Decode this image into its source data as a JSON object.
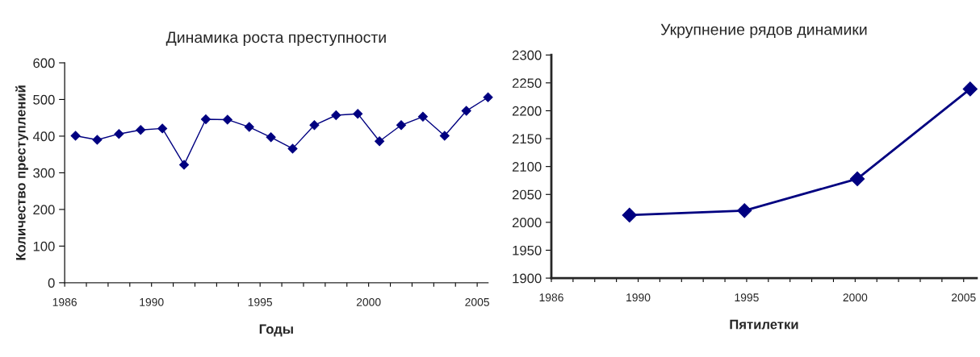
{
  "chart_data": [
    {
      "type": "line",
      "title": "Динамика роста преступности",
      "xlabel": "Годы",
      "ylabel": "Количество преступлений",
      "marker": "diamond",
      "line_style": "solid",
      "x": [
        1986.5,
        1987.5,
        1988.5,
        1989.5,
        1990.5,
        1991.5,
        1992.5,
        1993.5,
        1994.5,
        1995.5,
        1996.5,
        1997.5,
        1998.5,
        1999.5,
        2000.5,
        2001.5,
        2002.5,
        2003.5,
        2004.5,
        2005.5
      ],
      "series": [
        {
          "color": "#000080",
          "values": [
            401,
            390,
            406,
            417,
            421,
            322,
            446,
            445,
            425,
            397,
            366,
            430,
            457,
            461,
            386,
            430,
            453,
            401,
            469,
            506
          ]
        }
      ],
      "xlim": [
        1986,
        2005.5
      ],
      "ylim": [
        0,
        600
      ],
      "yticks": [
        0,
        100,
        200,
        300,
        400,
        500,
        600
      ],
      "xticks": [
        1986,
        {
          "value": 1987,
          "label": null
        },
        {
          "value": 1988,
          "label": null
        },
        {
          "value": 1989,
          "label": null
        },
        1990,
        {
          "value": 1991,
          "label": null
        },
        {
          "value": 1992,
          "label": null
        },
        {
          "value": 1993,
          "label": null
        },
        {
          "value": 1994,
          "label": null
        },
        1995,
        {
          "value": 1996,
          "label": null
        },
        {
          "value": 1997,
          "label": null
        },
        {
          "value": 1998,
          "label": null
        },
        {
          "value": 1999,
          "label": null
        },
        2000,
        {
          "value": 2001,
          "label": null
        },
        {
          "value": 2002,
          "label": null
        },
        {
          "value": 2003,
          "label": null
        },
        {
          "value": 2004,
          "label": null
        },
        2005
      ]
    },
    {
      "type": "line",
      "title": "Укрупнение рядов динамики",
      "xlabel": "Пятилетки",
      "marker": "diamond",
      "line_style": "solid",
      "x": [
        1989.6,
        1994.9,
        2000.1,
        2005.3
      ],
      "series": [
        {
          "color": "#000080",
          "values": [
            2013,
            2021,
            2078,
            2239
          ]
        }
      ],
      "xlim": [
        1986,
        2005.6
      ],
      "ylim": [
        1900,
        2300
      ],
      "yticks": [
        1900,
        1950,
        2000,
        2050,
        2100,
        2150,
        2200,
        2250,
        2300
      ],
      "xticks": [
        1986,
        {
          "value": 1987,
          "label": null
        },
        {
          "value": 1988,
          "label": null
        },
        {
          "value": 1989,
          "label": null
        },
        1990,
        {
          "value": 1991,
          "label": null
        },
        {
          "value": 1992,
          "label": null
        },
        {
          "value": 1993,
          "label": null
        },
        {
          "value": 1994,
          "label": null
        },
        1995,
        {
          "value": 1996,
          "label": null
        },
        {
          "value": 1997,
          "label": null
        },
        {
          "value": 1998,
          "label": null
        },
        {
          "value": 1999,
          "label": null
        },
        2000,
        {
          "value": 2001,
          "label": null
        },
        {
          "value": 2002,
          "label": null
        },
        {
          "value": 2003,
          "label": null
        },
        {
          "value": 2004,
          "label": null
        },
        2005
      ]
    }
  ]
}
